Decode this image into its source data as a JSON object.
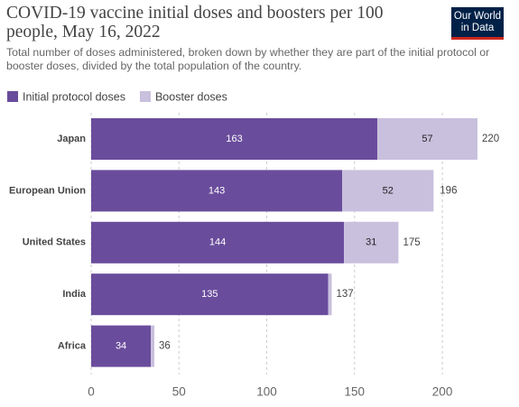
{
  "chart_data": {
    "type": "stacked-bar-horizontal",
    "title": "COVID-19 vaccine initial doses and boosters per 100 people, May 16, 2022",
    "subtitle": "Total number of doses administered, broken down by whether they are part of the initial protocol or booster doses, divided by the total population of the country.",
    "logo": [
      "Our World",
      "in Data"
    ],
    "categories": [
      "Japan",
      "European Union",
      "United States",
      "India",
      "Africa"
    ],
    "series": [
      {
        "name": "Initial protocol doses",
        "color": "#6a4c9c",
        "values": [
          163,
          143,
          144,
          135,
          34
        ]
      },
      {
        "name": "Booster doses",
        "color": "#c8c0dd",
        "values": [
          57,
          52,
          31,
          2,
          2
        ]
      }
    ],
    "totals": [
      220,
      196,
      175,
      137,
      36
    ],
    "xlim": [
      0,
      238
    ],
    "xticks": [
      0,
      50,
      100,
      150,
      200
    ],
    "grid": true
  }
}
